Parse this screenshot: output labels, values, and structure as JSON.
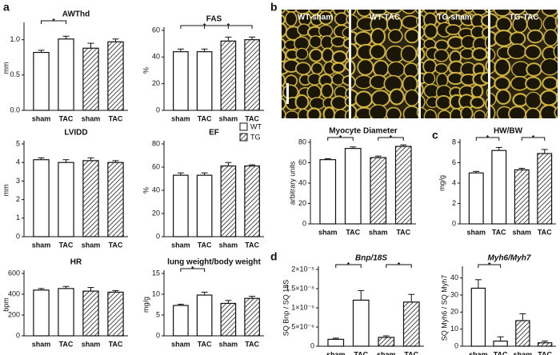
{
  "panel_labels": [
    "a",
    "b",
    "c",
    "d"
  ],
  "legend": [
    {
      "name": "WT",
      "pattern": "none"
    },
    {
      "name": "TG",
      "pattern": "hatch"
    }
  ],
  "micrographs": [
    "WT-sham",
    "WT-TAC",
    "TG-sham",
    "TG-TAC"
  ],
  "chart_data": [
    {
      "type": "bar",
      "title": "AWThd",
      "ylabel": "mm",
      "categories": [
        "sham",
        "TAC",
        "sham",
        "TAC"
      ],
      "groups": [
        0,
        0,
        1,
        1
      ],
      "values": [
        0.82,
        1.01,
        0.88,
        0.97
      ],
      "errors": [
        0.03,
        0.04,
        0.07,
        0.04
      ],
      "ylim": [
        0,
        1.2
      ],
      "yticks": [
        {
          "value": 0,
          "label": "0.0"
        },
        0.5,
        {
          "value": 1,
          "label": "1.0"
        }
      ],
      "significance": [
        {
          "label": "*",
          "between": [
            0,
            1
          ]
        }
      ]
    },
    {
      "type": "bar",
      "title": "FAS",
      "ylabel": "%",
      "categories": [
        "sham",
        "TAC",
        "sham",
        "TAC"
      ],
      "groups": [
        0,
        0,
        1,
        1
      ],
      "values": [
        44,
        44,
        52,
        53
      ],
      "errors": [
        2,
        2,
        3,
        2
      ],
      "ylim": [
        0,
        60
      ],
      "yticks": [
        0,
        20,
        40,
        60
      ],
      "significance": [
        {
          "label": "*",
          "between": [
            0,
            2
          ]
        },
        {
          "label": "*",
          "between": [
            1,
            3
          ]
        }
      ]
    },
    {
      "type": "bar",
      "title": "LVIDD",
      "ylabel": "mm",
      "categories": [
        "sham",
        "TAC",
        "sham",
        "TAC"
      ],
      "groups": [
        0,
        0,
        1,
        1
      ],
      "values": [
        4.15,
        4.0,
        4.1,
        4.0
      ],
      "errors": [
        0.1,
        0.15,
        0.15,
        0.1
      ],
      "ylim": [
        0,
        5
      ],
      "yticks": [
        0,
        1,
        2,
        3,
        4,
        5
      ],
      "significance": []
    },
    {
      "type": "bar",
      "title": "EF",
      "ylabel": "%",
      "categories": [
        "sham",
        "TAC",
        "sham",
        "TAC"
      ],
      "groups": [
        0,
        0,
        1,
        1
      ],
      "values": [
        53,
        53,
        61,
        61
      ],
      "errors": [
        2,
        2,
        3,
        1
      ],
      "ylim": [
        0,
        80
      ],
      "yticks": [
        0,
        20,
        40,
        60,
        80
      ],
      "significance": []
    },
    {
      "type": "bar",
      "title": "HR",
      "ylabel": "bpm",
      "categories": [
        "sham",
        "TAC",
        "sham",
        "TAC"
      ],
      "groups": [
        0,
        0,
        1,
        1
      ],
      "values": [
        440,
        455,
        430,
        420
      ],
      "errors": [
        15,
        20,
        35,
        15
      ],
      "ylim": [
        0,
        600
      ],
      "yticks": [
        0,
        200,
        400,
        600
      ],
      "significance": []
    },
    {
      "type": "bar",
      "title": "lung weight/body weight",
      "ylabel": "mg/g",
      "categories": [
        "sham",
        "TAC",
        "sham",
        "TAC"
      ],
      "groups": [
        0,
        0,
        1,
        1
      ],
      "values": [
        7.3,
        9.8,
        7.8,
        9.0
      ],
      "errors": [
        0.3,
        0.7,
        0.7,
        0.5
      ],
      "ylim": [
        0,
        15
      ],
      "yticks": [
        0,
        5,
        10,
        15
      ],
      "significance": [
        {
          "label": "*",
          "between": [
            0,
            1
          ]
        }
      ]
    },
    {
      "type": "bar",
      "title": "Myocyte Diameter",
      "ylabel": "arbitrary units",
      "categories": [
        "sham",
        "TAC",
        "sham",
        "TAC"
      ],
      "groups": [
        0,
        0,
        1,
        1
      ],
      "values": [
        63,
        74,
        65,
        76
      ],
      "errors": [
        1,
        1.5,
        1.5,
        1.5
      ],
      "ylim": [
        0,
        80
      ],
      "yticks": [
        0,
        20,
        40,
        60,
        80
      ],
      "significance": [
        {
          "label": "*",
          "between": [
            0,
            1
          ]
        },
        {
          "label": "*",
          "between": [
            2,
            3
          ]
        }
      ]
    },
    {
      "type": "bar",
      "title": "HW/BW",
      "ylabel": "mg/g",
      "categories": [
        "sham",
        "TAC",
        "sham",
        "TAC"
      ],
      "groups": [
        0,
        0,
        1,
        1
      ],
      "values": [
        5.0,
        7.2,
        5.3,
        6.9
      ],
      "errors": [
        0.15,
        0.3,
        0.15,
        0.4
      ],
      "ylim": [
        0,
        8
      ],
      "yticks": [
        0,
        2,
        4,
        6,
        8
      ],
      "significance": [
        {
          "label": "*",
          "between": [
            0,
            1
          ]
        },
        {
          "label": "*",
          "between": [
            2,
            3
          ]
        }
      ]
    },
    {
      "type": "bar",
      "title": "Bnp/18S",
      "ylabel": "SQ Bnp / SQ 18S",
      "categories": [
        "sham",
        "TAC",
        "sham",
        "TAC"
      ],
      "groups": [
        0,
        0,
        1,
        1
      ],
      "values": [
        1.8e-06,
        1.2e-05,
        2.3e-06,
        1.15e-05
      ],
      "errors": [
        3e-07,
        2.5e-06,
        4e-07,
        2e-06
      ],
      "ylim": [
        0,
        2e-05
      ],
      "yticks": [
        0,
        {
          "value": 5e-06,
          "label": "5×10⁻⁶"
        },
        {
          "value": 1e-05,
          "label": "1×10⁻⁵"
        },
        {
          "value": 1.5e-05,
          "label": "1.5×10⁻⁵"
        },
        {
          "value": 2e-05,
          "label": "2×10⁻⁵"
        }
      ],
      "significance": [
        {
          "label": "*",
          "between": [
            0,
            1
          ]
        },
        {
          "label": "*",
          "between": [
            2,
            3
          ]
        }
      ]
    },
    {
      "type": "bar",
      "title": "Myh6/Myh7",
      "ylabel": "SQ Myh6 / SQ Myh7",
      "categories": [
        "sham",
        "TAC",
        "sham",
        "TAC"
      ],
      "groups": [
        0,
        0,
        1,
        1
      ],
      "values": [
        34,
        3,
        15,
        2
      ],
      "errors": [
        5,
        2.5,
        4,
        1
      ],
      "ylim": [
        0,
        45
      ],
      "yticks": [
        0,
        10,
        20,
        30,
        40
      ],
      "significance": [
        {
          "label": "*",
          "between": [
            0,
            1
          ]
        }
      ]
    }
  ]
}
